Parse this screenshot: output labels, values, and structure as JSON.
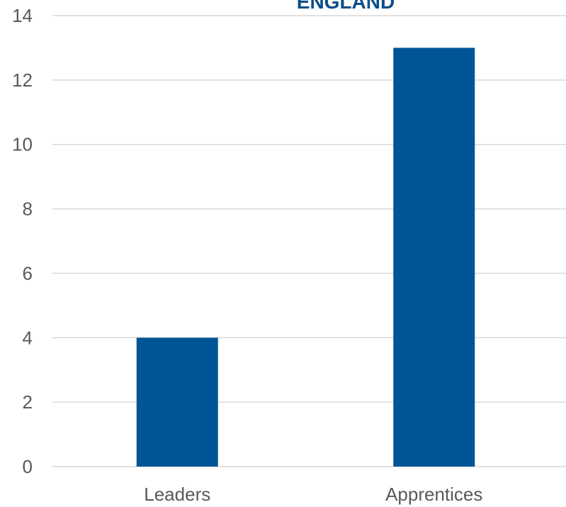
{
  "chart_data": {
    "type": "bar",
    "title": "ENGLAND",
    "categories": [
      "Leaders",
      "Apprentices"
    ],
    "values": [
      4,
      13
    ],
    "xlabel": "",
    "ylabel": "",
    "ylim": [
      0,
      14
    ],
    "yticks": [
      0,
      2,
      4,
      6,
      8,
      10,
      12,
      14
    ],
    "ytick_labels": [
      "0",
      "2",
      "4",
      "6",
      "8",
      "10",
      "12",
      "14"
    ],
    "grid": true,
    "legend": "none",
    "colors": {
      "bar": "#005596",
      "title": "#0a4f8a",
      "grid": "#d9d9d9",
      "text": "#595959"
    }
  }
}
